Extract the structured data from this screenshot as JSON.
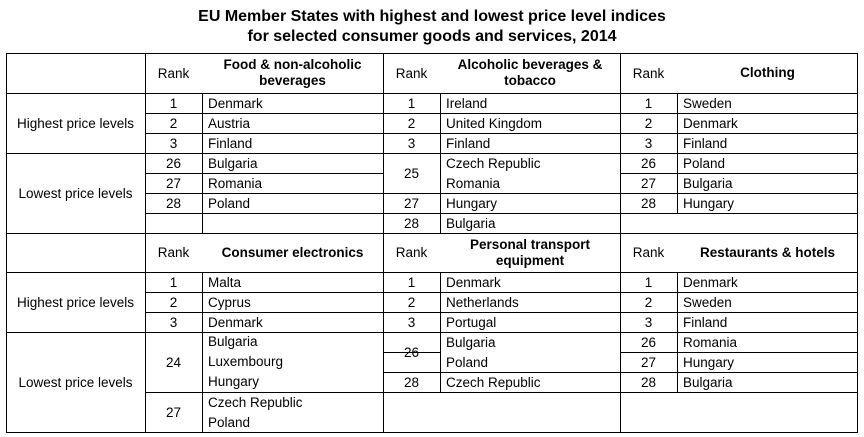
{
  "title_line1": "EU Member States with highest and lowest price level indices",
  "title_line2": "for selected consumer goods and services, 2014",
  "rank_label": "Rank",
  "row_labels": {
    "highest": "Highest price levels",
    "lowest": "Lowest price levels"
  },
  "sections": [
    {
      "categories": [
        {
          "header": "Food & non-alcoholic beverages",
          "highest": [
            {
              "rank": "1",
              "country": "Denmark"
            },
            {
              "rank": "2",
              "country": "Austria"
            },
            {
              "rank": "3",
              "country": "Finland"
            }
          ],
          "lowest": [
            {
              "rank": "26",
              "country": "Bulgaria"
            },
            {
              "rank": "27",
              "country": "Romania"
            },
            {
              "rank": "28",
              "country": "Poland"
            }
          ]
        },
        {
          "header": "Alcoholic beverages & tobacco",
          "highest": [
            {
              "rank": "1",
              "country": "Ireland"
            },
            {
              "rank": "2",
              "country": "United Kingdom"
            },
            {
              "rank": "3",
              "country": "Finland"
            }
          ],
          "lowest": [
            {
              "rank": "25",
              "countries": [
                "Czech Republic",
                "Romania"
              ]
            },
            {
              "rank": "27",
              "country": "Hungary"
            },
            {
              "rank": "28",
              "country": "Bulgaria"
            }
          ]
        },
        {
          "header": "Clothing",
          "highest": [
            {
              "rank": "1",
              "country": "Sweden"
            },
            {
              "rank": "2",
              "country": "Denmark"
            },
            {
              "rank": "3",
              "country": "Finland"
            }
          ],
          "lowest": [
            {
              "rank": "26",
              "country": "Poland"
            },
            {
              "rank": "27",
              "country": "Bulgaria"
            },
            {
              "rank": "28",
              "country": "Hungary"
            }
          ]
        }
      ]
    },
    {
      "categories": [
        {
          "header": "Consumer electronics",
          "highest": [
            {
              "rank": "1",
              "country": "Malta"
            },
            {
              "rank": "2",
              "country": "Cyprus"
            },
            {
              "rank": "3",
              "country": "Denmark"
            }
          ],
          "lowest": [
            {
              "rank": "24",
              "countries": [
                "Bulgaria",
                "Luxembourg",
                "Hungary"
              ]
            },
            {
              "rank": "27",
              "countries": [
                "Czech Republic",
                "Poland"
              ]
            }
          ]
        },
        {
          "header": "Personal transport equipment",
          "highest": [
            {
              "rank": "1",
              "country": "Denmark"
            },
            {
              "rank": "2",
              "country": "Netherlands"
            },
            {
              "rank": "3",
              "country": "Portugal"
            }
          ],
          "lowest": [
            {
              "rank": "26",
              "countries": [
                "Bulgaria",
                "Poland"
              ]
            },
            {
              "rank": "28",
              "country": "Czech Republic"
            }
          ]
        },
        {
          "header": "Restaurants & hotels",
          "highest": [
            {
              "rank": "1",
              "country": "Denmark"
            },
            {
              "rank": "2",
              "country": "Sweden"
            },
            {
              "rank": "3",
              "country": "Finland"
            }
          ],
          "lowest": [
            {
              "rank": "26",
              "country": "Romania"
            },
            {
              "rank": "27",
              "country": "Hungary"
            },
            {
              "rank": "28",
              "country": "Bulgaria"
            }
          ]
        }
      ]
    }
  ]
}
